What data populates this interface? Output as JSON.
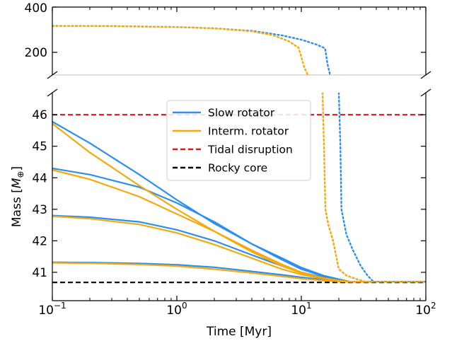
{
  "chart_data": {
    "type": "line",
    "xlabel": "Time [Myr]",
    "ylabel_text": "Mass [",
    "ylabel_unit": "M",
    "ylabel_sub": "⊕",
    "ylabel_close": "]",
    "xscale": "log",
    "xlim": [
      0.1,
      100
    ],
    "x_ticks": [
      {
        "base": "10",
        "exp": "−1",
        "value": 0.1
      },
      {
        "base": "10",
        "exp": "0",
        "value": 1
      },
      {
        "base": "10",
        "exp": "1",
        "value": 10
      },
      {
        "base": "10",
        "exp": "2",
        "value": 100
      }
    ],
    "panels": {
      "top": {
        "ylim": [
          100,
          400
        ],
        "yticks": [
          "200",
          "400"
        ],
        "ytick_values": [
          200,
          400
        ]
      },
      "bottom": {
        "ylim": [
          40.1,
          46.7
        ],
        "yticks": [
          "41",
          "42",
          "43",
          "44",
          "45",
          "46"
        ],
        "ytick_values": [
          41,
          42,
          43,
          44,
          45,
          46
        ]
      }
    },
    "legend_position": "upper center",
    "legend": [
      {
        "label": "Slow rotator",
        "color": "#2a8ff0",
        "style": "solid"
      },
      {
        "label": "Interm. rotator",
        "color": "#f7a80c",
        "style": "solid"
      },
      {
        "label": "Tidal disruption",
        "color": "#e8121c",
        "style": "dashed"
      },
      {
        "label": "Rocky core",
        "color": "#000000",
        "style": "dashed"
      }
    ],
    "reference_lines": {
      "tidal_disruption": 46.0,
      "rocky_core": 40.68
    },
    "series": [
      {
        "group": "Slow rotator",
        "color": "#2a8ff0",
        "style": "solid",
        "panel": "bottom",
        "x": [
          0.1,
          0.2,
          0.5,
          1,
          2,
          4,
          7,
          10,
          15,
          20,
          25,
          30,
          100
        ],
        "y": [
          45.78,
          45.1,
          44.1,
          43.3,
          42.55,
          41.9,
          41.45,
          41.15,
          40.9,
          40.78,
          40.7,
          40.7,
          40.7
        ]
      },
      {
        "group": "Slow rotator",
        "color": "#2a8ff0",
        "style": "solid",
        "panel": "bottom",
        "x": [
          0.1,
          0.2,
          0.5,
          1,
          2,
          4,
          7,
          10,
          15,
          20,
          25,
          30,
          100
        ],
        "y": [
          44.3,
          44.1,
          43.7,
          43.2,
          42.6,
          41.9,
          41.4,
          41.1,
          40.88,
          40.76,
          40.7,
          40.7,
          40.7
        ]
      },
      {
        "group": "Slow rotator",
        "color": "#2a8ff0",
        "style": "solid",
        "panel": "bottom",
        "x": [
          0.1,
          0.2,
          0.5,
          1,
          2,
          4,
          7,
          10,
          15,
          20,
          25,
          30,
          100
        ],
        "y": [
          42.8,
          42.75,
          42.6,
          42.35,
          42.0,
          41.55,
          41.2,
          41.0,
          40.84,
          40.75,
          40.7,
          40.7,
          40.7
        ]
      },
      {
        "group": "Slow rotator",
        "color": "#2a8ff0",
        "style": "solid",
        "panel": "bottom",
        "x": [
          0.1,
          0.2,
          0.5,
          1,
          2,
          4,
          7,
          10,
          15,
          20,
          25,
          30,
          100
        ],
        "y": [
          41.32,
          41.31,
          41.28,
          41.24,
          41.16,
          41.03,
          40.92,
          40.84,
          40.77,
          40.73,
          40.7,
          40.7,
          40.7
        ]
      },
      {
        "group": "Interm. rotator",
        "color": "#f7a80c",
        "style": "solid",
        "panel": "bottom",
        "x": [
          0.1,
          0.2,
          0.5,
          1,
          2,
          4,
          7,
          10,
          15,
          20,
          25,
          100
        ],
        "y": [
          45.72,
          44.8,
          43.75,
          43.0,
          42.3,
          41.65,
          41.2,
          40.98,
          40.82,
          40.74,
          40.7,
          40.7
        ]
      },
      {
        "group": "Interm. rotator",
        "color": "#f7a80c",
        "style": "solid",
        "panel": "bottom",
        "x": [
          0.1,
          0.2,
          0.5,
          1,
          2,
          4,
          7,
          10,
          15,
          20,
          25,
          100
        ],
        "y": [
          44.25,
          43.95,
          43.4,
          42.85,
          42.3,
          41.7,
          41.25,
          41.0,
          40.82,
          40.74,
          40.7,
          40.7
        ]
      },
      {
        "group": "Interm. rotator",
        "color": "#f7a80c",
        "style": "solid",
        "panel": "bottom",
        "x": [
          0.1,
          0.2,
          0.5,
          1,
          2,
          4,
          7,
          10,
          15,
          20,
          25,
          100
        ],
        "y": [
          42.78,
          42.7,
          42.52,
          42.25,
          41.88,
          41.45,
          41.1,
          40.93,
          40.8,
          40.73,
          40.7,
          40.7
        ]
      },
      {
        "group": "Interm. rotator",
        "color": "#f7a80c",
        "style": "solid",
        "panel": "bottom",
        "x": [
          0.1,
          0.2,
          0.5,
          1,
          2,
          4,
          7,
          10,
          15,
          20,
          25,
          100
        ],
        "y": [
          41.3,
          41.29,
          41.25,
          41.2,
          41.1,
          40.98,
          40.87,
          40.8,
          40.74,
          40.71,
          40.7,
          40.7
        ]
      },
      {
        "group": "Slow rotator",
        "color": "#2a8ff0",
        "style": "dotted",
        "panel": "top",
        "x": [
          0.1,
          0.3,
          1,
          2,
          4,
          7,
          10,
          13,
          15.5,
          16.2,
          17.0
        ],
        "y": [
          317,
          316,
          312,
          306,
          295,
          275,
          256,
          236,
          218,
          150,
          100
        ]
      },
      {
        "group": "Slow rotator",
        "color": "#2a8ff0",
        "style": "dotted",
        "panel": "bottom",
        "x": [
          20.0,
          20.6,
          21,
          23,
          26,
          30,
          34,
          38,
          100
        ],
        "y": [
          46.7,
          45.0,
          43.0,
          42.2,
          41.7,
          41.2,
          40.9,
          40.7,
          40.7
        ]
      },
      {
        "group": "Interm. rotator",
        "color": "#f7a80c",
        "style": "dotted",
        "panel": "top",
        "x": [
          0.1,
          0.3,
          1,
          2,
          4,
          6,
          8,
          9.5,
          10.0,
          10.6,
          11.3
        ],
        "y": [
          317,
          316,
          312,
          306,
          293,
          275,
          248,
          220,
          180,
          130,
          100
        ]
      },
      {
        "group": "Interm. rotator",
        "color": "#f7a80c",
        "style": "dotted",
        "panel": "bottom",
        "x": [
          14.8,
          15.2,
          15.6,
          16.5,
          18,
          20,
          23,
          28,
          33,
          100
        ],
        "y": [
          46.7,
          45.0,
          43.0,
          42.5,
          42.0,
          41.1,
          40.9,
          40.78,
          40.7,
          40.7
        ]
      }
    ]
  }
}
